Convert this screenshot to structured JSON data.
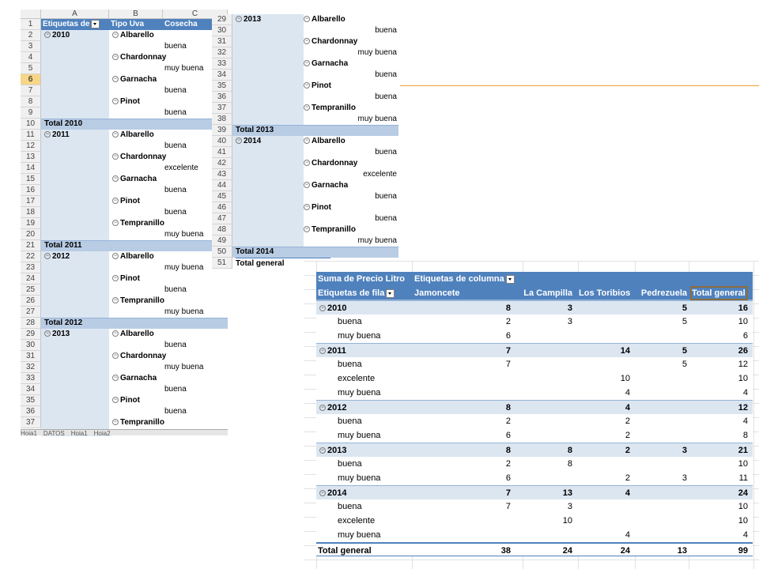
{
  "sheet1": {
    "col_headers": [
      "A",
      "B",
      "C"
    ],
    "header_row": {
      "a": "Etiquetas de",
      "b": "Tipo Uva",
      "c": "Cosecha"
    },
    "selected_row": 6,
    "rows": [
      {
        "n": 2,
        "year": "2010",
        "uva": "Albarello"
      },
      {
        "n": 3,
        "cos": "buena"
      },
      {
        "n": 4,
        "uva": "Chardonnay"
      },
      {
        "n": 5,
        "cos": "muy buena"
      },
      {
        "n": 6,
        "uva": "Garnacha"
      },
      {
        "n": 7,
        "cos": "buena"
      },
      {
        "n": 8,
        "uva": "Pinot"
      },
      {
        "n": 9,
        "cos": "buena"
      },
      {
        "n": 10,
        "total": "Total 2010"
      },
      {
        "n": 11,
        "year": "2011",
        "uva": "Albarello"
      },
      {
        "n": 12,
        "cos": "buena"
      },
      {
        "n": 13,
        "uva": "Chardonnay"
      },
      {
        "n": 14,
        "cos": "excelente"
      },
      {
        "n": 15,
        "uva": "Garnacha"
      },
      {
        "n": 16,
        "cos": "buena"
      },
      {
        "n": 17,
        "uva": "Pinot"
      },
      {
        "n": 18,
        "cos": "buena"
      },
      {
        "n": 19,
        "uva": "Tempranillo"
      },
      {
        "n": 20,
        "cos": "muy buena"
      },
      {
        "n": 21,
        "total": "Total 2011"
      },
      {
        "n": 22,
        "year": "2012",
        "uva": "Albarello"
      },
      {
        "n": 23,
        "cos": "muy buena"
      },
      {
        "n": 24,
        "uva": "Pinot"
      },
      {
        "n": 25,
        "cos": "buena"
      },
      {
        "n": 26,
        "uva": "Tempranillo"
      },
      {
        "n": 27,
        "cos": "muy buena"
      },
      {
        "n": 28,
        "total": "Total 2012"
      },
      {
        "n": 29,
        "year": "2013",
        "uva": "Albarello"
      },
      {
        "n": 30,
        "cos": "buena"
      },
      {
        "n": 31,
        "uva": "Chardonnay"
      },
      {
        "n": 32,
        "cos": "muy buena"
      },
      {
        "n": 33,
        "uva": "Garnacha"
      },
      {
        "n": 34,
        "cos": "buena"
      },
      {
        "n": 35,
        "uva": "Pinot"
      },
      {
        "n": 36,
        "cos": "buena"
      },
      {
        "n": 37,
        "uva": "Tempranillo"
      }
    ],
    "tabs": [
      "Hoja1",
      "DATOS",
      "Hoja1",
      "Hoja2"
    ]
  },
  "sheet2": {
    "rows": [
      {
        "n": 29,
        "year": "2013",
        "uva": "Albarello"
      },
      {
        "n": 30,
        "cos": "buena"
      },
      {
        "n": 31,
        "uva": "Chardonnay"
      },
      {
        "n": 32,
        "cos": "muy buena"
      },
      {
        "n": 33,
        "uva": "Garnacha"
      },
      {
        "n": 34,
        "cos": "buena"
      },
      {
        "n": 35,
        "uva": "Pinot"
      },
      {
        "n": 36,
        "cos": "buena"
      },
      {
        "n": 37,
        "uva": "Tempranillo"
      },
      {
        "n": 38,
        "cos": "muy buena"
      },
      {
        "n": 39,
        "total": "Total 2013"
      },
      {
        "n": 40,
        "year": "2014",
        "uva": "Albarello"
      },
      {
        "n": 41,
        "cos": "buena"
      },
      {
        "n": 42,
        "uva": "Chardonnay"
      },
      {
        "n": 43,
        "cos": "excelente"
      },
      {
        "n": 44,
        "uva": "Garnacha"
      },
      {
        "n": 45,
        "cos": "buena"
      },
      {
        "n": 46,
        "uva": "Pinot"
      },
      {
        "n": 47,
        "cos": "buena"
      },
      {
        "n": 48,
        "uva": "Tempranillo"
      },
      {
        "n": 49,
        "cos": "muy buena"
      },
      {
        "n": 50,
        "total": "Total 2014"
      },
      {
        "n": 51,
        "grand": "Total general"
      }
    ]
  },
  "pivot": {
    "value_label": "Suma de Precio Litro",
    "col_label": "Etiquetas de columna",
    "row_label": "Etiquetas de fila",
    "columns": [
      "Jamoncete",
      "La Campilla",
      "Los Toribios",
      "Pedrezuela",
      "Total general"
    ],
    "rows": [
      {
        "type": "year",
        "label": "2010",
        "v": [
          "8",
          "3",
          "",
          "5",
          "16"
        ]
      },
      {
        "type": "item",
        "label": "buena",
        "v": [
          "2",
          "3",
          "",
          "5",
          "10"
        ]
      },
      {
        "type": "item",
        "label": "muy buena",
        "v": [
          "6",
          "",
          "",
          "",
          "6"
        ]
      },
      {
        "type": "year",
        "label": "2011",
        "v": [
          "7",
          "",
          "14",
          "5",
          "26"
        ]
      },
      {
        "type": "item",
        "label": "buena",
        "v": [
          "7",
          "",
          "",
          "5",
          "12"
        ]
      },
      {
        "type": "item",
        "label": "excelente",
        "v": [
          "",
          "",
          "10",
          "",
          "10"
        ]
      },
      {
        "type": "item",
        "label": "muy buena",
        "v": [
          "",
          "",
          "4",
          "",
          "4"
        ]
      },
      {
        "type": "year",
        "label": "2012",
        "v": [
          "8",
          "",
          "4",
          "",
          "12"
        ]
      },
      {
        "type": "item",
        "label": "buena",
        "v": [
          "2",
          "",
          "2",
          "",
          "4"
        ]
      },
      {
        "type": "item",
        "label": "muy buena",
        "v": [
          "6",
          "",
          "2",
          "",
          "8"
        ]
      },
      {
        "type": "year",
        "label": "2013",
        "v": [
          "8",
          "8",
          "2",
          "3",
          "21"
        ]
      },
      {
        "type": "item",
        "label": "buena",
        "v": [
          "2",
          "8",
          "",
          "",
          "10"
        ]
      },
      {
        "type": "item",
        "label": "muy buena",
        "v": [
          "6",
          "",
          "2",
          "3",
          "11"
        ]
      },
      {
        "type": "year",
        "label": "2014",
        "v": [
          "7",
          "13",
          "4",
          "",
          "24"
        ]
      },
      {
        "type": "item",
        "label": "buena",
        "v": [
          "7",
          "3",
          "",
          "",
          "10"
        ]
      },
      {
        "type": "item",
        "label": "excelente",
        "v": [
          "",
          "10",
          "",
          "",
          "10"
        ]
      },
      {
        "type": "item",
        "label": "muy buena",
        "v": [
          "",
          "",
          "4",
          "",
          "4"
        ]
      },
      {
        "type": "total",
        "label": "Total general",
        "v": [
          "38",
          "24",
          "24",
          "13",
          "99"
        ]
      }
    ]
  },
  "colors": {
    "header_blue": "#4f81bd",
    "light_blue": "#dce6f1",
    "total_band": "#b8cce4",
    "accent_line": "#f0a030"
  }
}
